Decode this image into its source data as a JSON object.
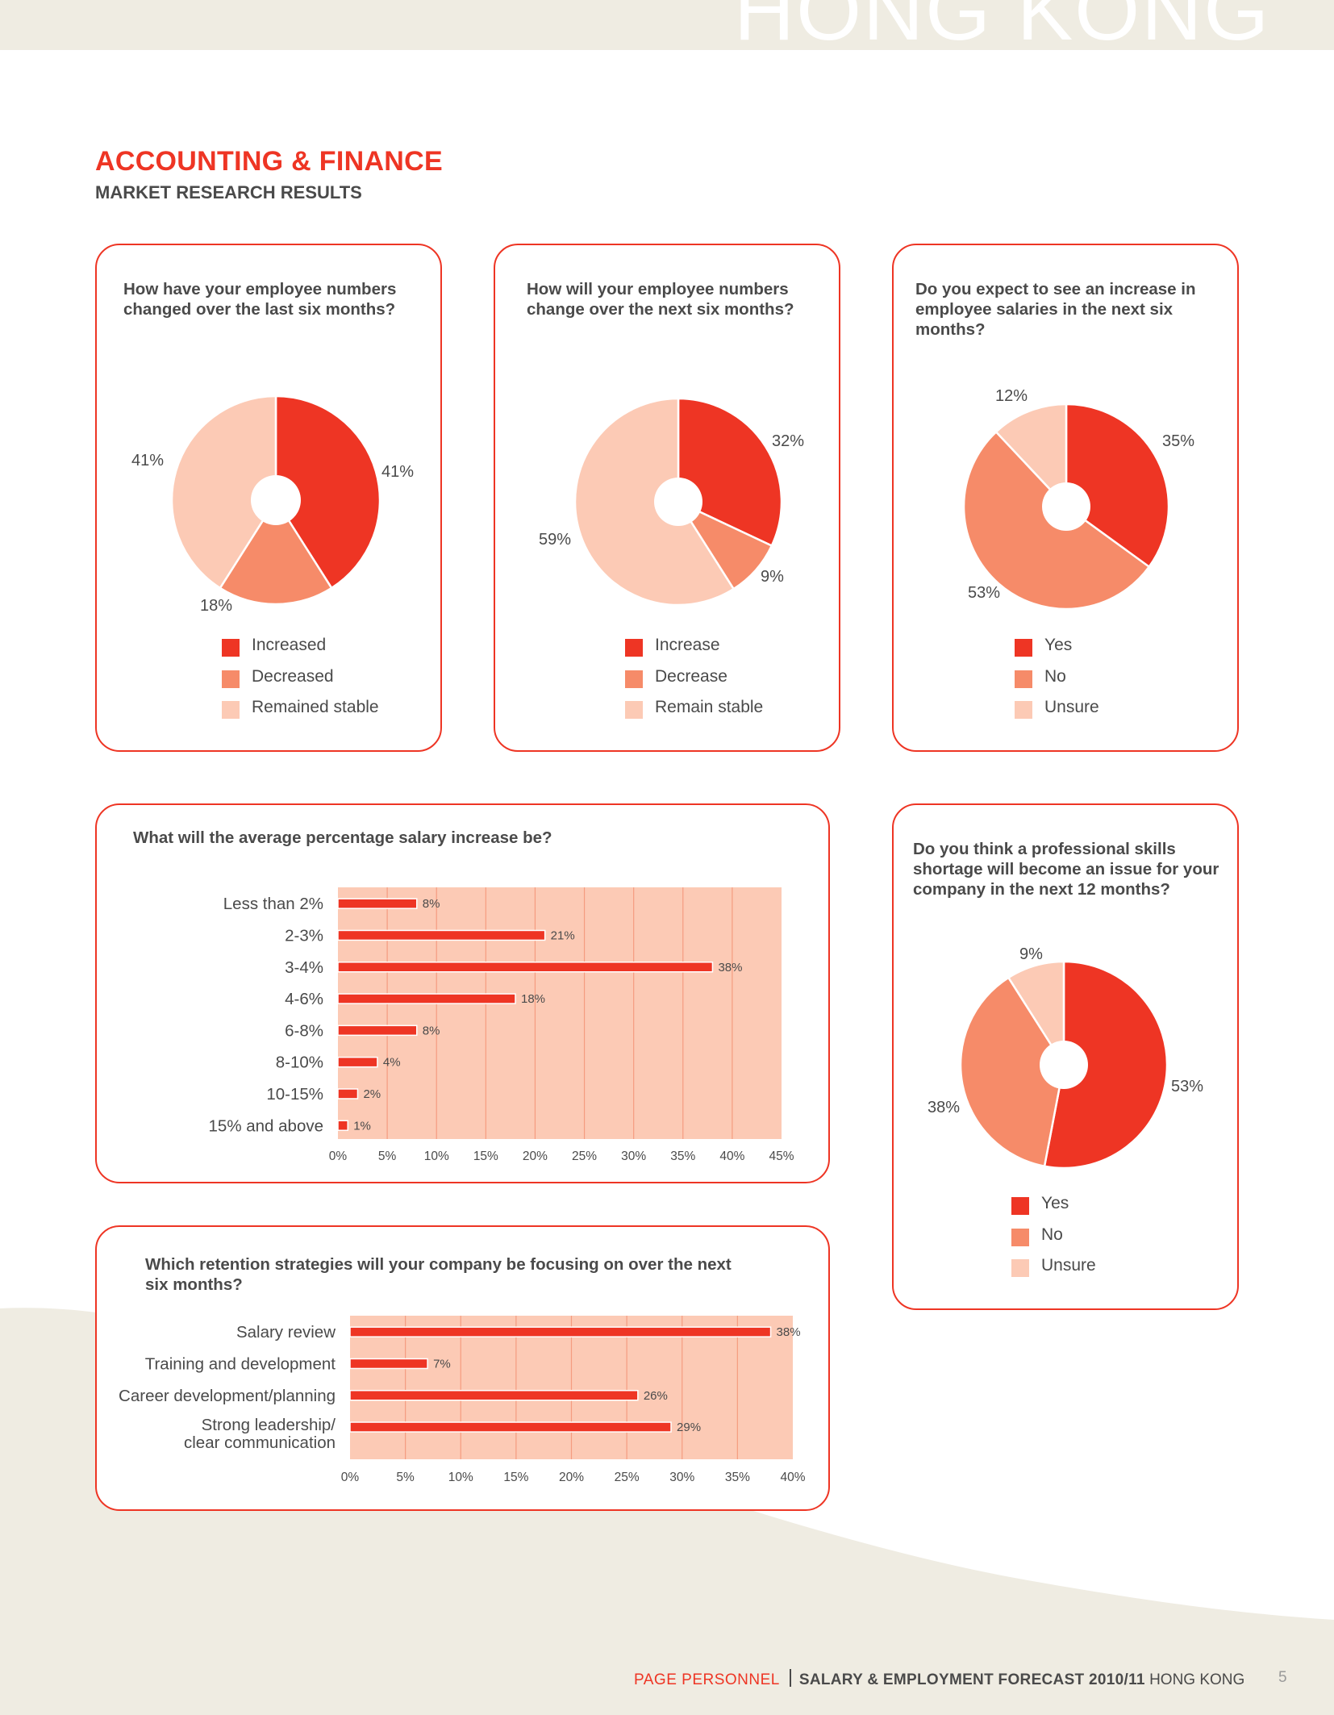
{
  "colors": {
    "accent": "#ee3524",
    "mid": "#f68b69",
    "light": "#fccab5",
    "beige": "#efece2",
    "text": "#4a4a4a"
  },
  "banner": {
    "text": "HONG KONG"
  },
  "header": {
    "title": "ACCOUNTING & FINANCE",
    "subtitle": "MARKET RESEARCH RESULTS"
  },
  "footer": {
    "brand": "PAGE PERSONNEL",
    "publication": "SALARY & EMPLOYMENT FORECAST 2010/11",
    "region": "HONG KONG",
    "page": "5"
  },
  "chart_data": [
    {
      "type": "pie",
      "title": "How have your employee numbers changed over the last six months?",
      "categories": [
        "Increased",
        "Decreased",
        "Remained stable"
      ],
      "values": [
        41,
        18,
        41
      ],
      "data_labels": [
        "41%",
        "18%",
        "41%"
      ],
      "colors": [
        "#ee3524",
        "#f68b69",
        "#fccab5"
      ],
      "legend": "bottom"
    },
    {
      "type": "pie",
      "title": "How will your employee numbers change over the next six months?",
      "categories": [
        "Increase",
        "Decrease",
        "Remain stable"
      ],
      "values": [
        32,
        9,
        59
      ],
      "data_labels": [
        "32%",
        "9%",
        "59%"
      ],
      "colors": [
        "#ee3524",
        "#f68b69",
        "#fccab5"
      ],
      "legend": "bottom"
    },
    {
      "type": "pie",
      "title": "Do you expect to see an increase in employee salaries in the next six months?",
      "categories": [
        "Yes",
        "No",
        "Unsure"
      ],
      "values": [
        35,
        53,
        12
      ],
      "data_labels": [
        "35%",
        "53%",
        "12%"
      ],
      "colors": [
        "#ee3524",
        "#f68b69",
        "#fccab5"
      ],
      "legend": "bottom"
    },
    {
      "type": "bar",
      "orientation": "horizontal",
      "title": "What will the average percentage salary increase be?",
      "categories": [
        "Less than 2%",
        "2-3%",
        "3-4%",
        "4-6%",
        "6-8%",
        "8-10%",
        "10-15%",
        "15% and above"
      ],
      "values": [
        8,
        21,
        38,
        18,
        8,
        4,
        2,
        1
      ],
      "data_labels": [
        "8%",
        "21%",
        "38%",
        "18%",
        "8%",
        "4%",
        "2%",
        "1%"
      ],
      "xlim": [
        0,
        45
      ],
      "xticks": [
        "0%",
        "5%",
        "10%",
        "15%",
        "20%",
        "25%",
        "30%",
        "35%",
        "40%",
        "45%"
      ],
      "grid": true
    },
    {
      "type": "bar",
      "orientation": "horizontal",
      "title": "Which retention strategies will your company be focusing on over the next six months?",
      "categories": [
        "Salary review",
        "Training and development",
        "Career development/planning",
        "Strong leadership/\nclear communication"
      ],
      "values": [
        38,
        7,
        26,
        29
      ],
      "data_labels": [
        "38%",
        "7%",
        "26%",
        "29%"
      ],
      "xlim": [
        0,
        40
      ],
      "xticks": [
        "0%",
        "5%",
        "10%",
        "15%",
        "20%",
        "25%",
        "30%",
        "35%",
        "40%"
      ],
      "grid": true
    },
    {
      "type": "pie",
      "title": "Do you think a professional skills shortage will become an issue for your company in the next 12 months?",
      "categories": [
        "Yes",
        "No",
        "Unsure"
      ],
      "values": [
        53,
        38,
        9
      ],
      "data_labels": [
        "53%",
        "38%",
        "9%"
      ],
      "colors": [
        "#ee3524",
        "#f68b69",
        "#fccab5"
      ],
      "legend": "bottom"
    }
  ]
}
